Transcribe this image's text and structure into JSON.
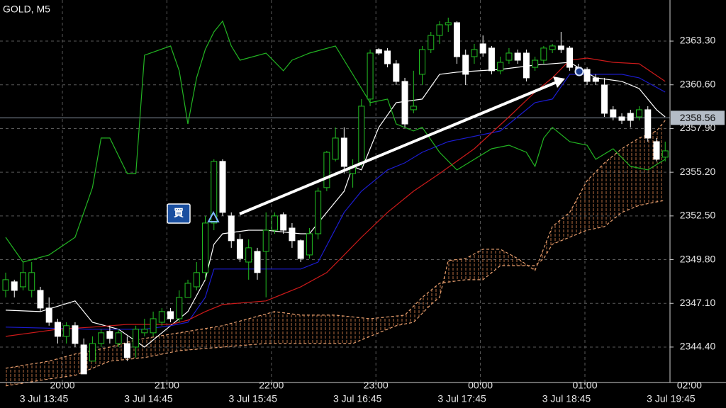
{
  "chart_data": {
    "type": "candlestick",
    "title": "GOLD, M5",
    "ylim": [
      2342.21,
      2365.84
    ],
    "yticks": [
      {
        "value": 2363.3,
        "label": "2363.30"
      },
      {
        "value": 2360.6,
        "label": "2360.60"
      },
      {
        "value": 2357.9,
        "label": "2357.90"
      },
      {
        "value": 2355.2,
        "label": "2355.20"
      },
      {
        "value": 2352.5,
        "label": "2352.50"
      },
      {
        "value": 2349.8,
        "label": "2349.80"
      },
      {
        "value": 2347.1,
        "label": "2347.10"
      },
      {
        "value": 2344.4,
        "label": "2344.40"
      }
    ],
    "grid": true,
    "current_price": 2358.56,
    "x_labels_upper": [
      "20:00",
      "21:00",
      "22:00",
      "23:00",
      "00:00",
      "01:00",
      "02:00"
    ],
    "x_labels_lower": [
      "3 Jul 13:45",
      "3 Jul 14:45",
      "3 Jul 15:45",
      "3 Jul 16:45",
      "3 Jul 17:45",
      "3 Jul 18:45",
      "3 Jul 19:45"
    ],
    "annotation": "買",
    "up_color": "#22c022",
    "down_color": "#ffffff",
    "candles": {
      "open": [
        2347.9,
        2348.43,
        2348.12,
        2347.9,
        2347.9,
        2346.81,
        2345.93,
        2345.06,
        2345.72,
        2344.53,
        2343.53,
        2344.62,
        2345.37,
        2344.62,
        2344.62,
        2344.4,
        2345.28,
        2345.28,
        2345.93,
        2346.59,
        2346.15,
        2347.47,
        2348.12,
        2349.0,
        2352.06,
        2355.87,
        2352.5,
        2351.05,
        2349.65,
        2350.31,
        2350.31,
        2351.62,
        2352.58,
        2351.75,
        2350.97,
        2350.09,
        2351.4,
        2354.25,
        2356.0,
        2357.31,
        2355.12,
        2355.78,
        2359.72,
        2362.78,
        2362.69,
        2361.9,
        2360.81,
        2359.06,
        2361.25,
        2362.78,
        2363.65,
        2364.31,
        2364.44,
        2362.43,
        2362.34,
        2363.13,
        2362.87,
        2361.47,
        2362.12,
        2362.56,
        2362.56,
        2361.68,
        2362.12,
        2362.78,
        2363.0,
        2362.87,
        2361.68,
        2361.55,
        2361.03,
        2360.59,
        2359.06,
        2358.62,
        2358.84,
        2358.62,
        2359.06,
        2357.09,
        2356.13
      ],
      "high": [
        2349.0,
        2348.56,
        2349.65,
        2349.65,
        2348.12,
        2347.47,
        2346.15,
        2345.93,
        2345.93,
        2344.93,
        2345.06,
        2345.5,
        2345.72,
        2345.5,
        2345.06,
        2345.72,
        2346.15,
        2346.59,
        2346.81,
        2346.81,
        2347.9,
        2348.56,
        2349.65,
        2352.5,
        2356.0,
        2356.0,
        2352.72,
        2351.4,
        2351.05,
        2350.53,
        2352.72,
        2352.72,
        2352.72,
        2352.06,
        2351.05,
        2351.75,
        2354.25,
        2356.52,
        2357.97,
        2357.97,
        2356.0,
        2359.72,
        2362.78,
        2362.87,
        2362.87,
        2362.12,
        2361.03,
        2361.47,
        2363.0,
        2363.87,
        2364.53,
        2364.75,
        2364.53,
        2362.78,
        2363.13,
        2363.65,
        2363.0,
        2362.34,
        2362.87,
        2362.78,
        2362.78,
        2362.34,
        2363.0,
        2363.13,
        2363.87,
        2363.0,
        2361.9,
        2361.68,
        2361.25,
        2361.03,
        2359.28,
        2358.84,
        2359.06,
        2359.28,
        2359.28,
        2357.31,
        2357.09
      ],
      "low": [
        2347.47,
        2347.47,
        2347.9,
        2347.47,
        2346.59,
        2345.72,
        2344.62,
        2344.62,
        2344.4,
        2342.74,
        2343.53,
        2344.4,
        2344.62,
        2344.4,
        2343.53,
        2343.75,
        2345.06,
        2345.06,
        2345.72,
        2345.93,
        2345.93,
        2347.47,
        2347.9,
        2348.56,
        2351.62,
        2352.5,
        2350.53,
        2349.65,
        2348.56,
        2348.56,
        2347.47,
        2351.4,
        2351.4,
        2350.53,
        2349.65,
        2349.87,
        2351.05,
        2354.03,
        2355.87,
        2355.12,
        2354.25,
        2355.56,
        2359.28,
        2362.43,
        2361.68,
        2360.59,
        2357.97,
        2358.84,
        2360.59,
        2362.56,
        2363.13,
        2363.87,
        2361.9,
        2360.59,
        2361.9,
        2362.34,
        2361.25,
        2361.25,
        2361.9,
        2361.9,
        2360.81,
        2361.47,
        2361.9,
        2362.56,
        2362.56,
        2361.47,
        2361.25,
        2360.59,
        2360.59,
        2358.62,
        2358.4,
        2358.18,
        2357.97,
        2358.4,
        2357.09,
        2355.87,
        2355.87
      ],
      "close": [
        2348.56,
        2347.9,
        2349.0,
        2349.0,
        2346.81,
        2345.93,
        2345.06,
        2345.72,
        2344.62,
        2342.74,
        2344.62,
        2345.28,
        2344.93,
        2345.28,
        2343.75,
        2345.5,
        2345.5,
        2346.15,
        2346.59,
        2346.15,
        2347.47,
        2348.34,
        2349.0,
        2352.06,
        2355.87,
        2352.72,
        2350.97,
        2349.87,
        2350.53,
        2349.0,
        2351.62,
        2352.5,
        2351.62,
        2350.97,
        2349.87,
        2351.4,
        2354.03,
        2356.43,
        2357.31,
        2355.56,
        2355.56,
        2359.28,
        2362.56,
        2362.56,
        2361.9,
        2360.81,
        2358.18,
        2359.28,
        2362.78,
        2363.65,
        2364.31,
        2364.44,
        2362.34,
        2361.25,
        2362.78,
        2362.56,
        2361.47,
        2361.99,
        2362.56,
        2362.12,
        2361.03,
        2362.12,
        2362.87,
        2363.0,
        2362.78,
        2361.68,
        2361.47,
        2360.81,
        2360.81,
        2358.84,
        2358.62,
        2358.4,
        2358.4,
        2359.06,
        2357.31,
        2356.0,
        2356.52
      ]
    },
    "lines": [
      {
        "color": "#ffffff",
        "dashed": false,
        "x": [
          0,
          4,
          8,
          10,
          13,
          16,
          19,
          21,
          23,
          24,
          25,
          28,
          30,
          34,
          35,
          37,
          39,
          40,
          41,
          43,
          45,
          48,
          50,
          52,
          57,
          61,
          65,
          68,
          71,
          73,
          75,
          76
        ],
        "values": [
          2346.68,
          2346.59,
          2347.25,
          2345.93,
          2345.5,
          2344.4,
          2345.72,
          2346.59,
          2348.56,
          2350.75,
          2351.4,
          2351.62,
          2351.62,
          2351.4,
          2351.4,
          2352.72,
          2354.03,
          2355.56,
          2355.34,
          2357.97,
          2359.5,
          2359.72,
          2361.25,
          2361.38,
          2361.55,
          2361.82,
          2361.99,
          2361.03,
          2360.81,
          2360.37,
          2359.06,
          2358.62
        ]
      },
      {
        "color": "#1c1cd0",
        "dashed": false,
        "x": [
          0,
          10,
          16,
          19,
          21,
          23,
          24,
          30,
          34,
          36,
          39,
          41,
          44,
          46,
          48,
          51,
          53,
          57,
          61,
          63,
          65,
          68,
          71,
          73,
          76
        ],
        "values": [
          2345.63,
          2345.5,
          2345.5,
          2345.72,
          2345.93,
          2347.47,
          2349.22,
          2349.22,
          2349.22,
          2349.65,
          2352.72,
          2354.03,
          2355.34,
          2355.78,
          2356.43,
          2357.09,
          2357.31,
          2357.75,
          2359.5,
          2359.72,
          2361.25,
          2361.25,
          2361.25,
          2361.03,
          2360.15
        ]
      },
      {
        "color": "#cc1a1a",
        "dashed": false,
        "x": [
          0,
          6,
          10,
          14,
          19,
          21,
          23,
          25,
          30,
          34,
          37,
          39,
          41,
          44,
          47,
          50,
          54,
          58,
          61,
          63,
          65,
          67,
          70,
          73,
          76
        ],
        "values": [
          2345.06,
          2345.5,
          2345.63,
          2345.8,
          2345.8,
          2346.06,
          2346.59,
          2347.03,
          2347.25,
          2348.12,
          2349.0,
          2350.09,
          2351.18,
          2352.72,
          2354.03,
          2355.12,
          2356.65,
          2358.62,
          2360.15,
          2361.03,
          2362.12,
          2362.25,
          2361.99,
          2361.9,
          2360.81
        ]
      },
      {
        "color": "#22b422",
        "dashed": false,
        "x": [
          0,
          2,
          5,
          8,
          10,
          11,
          12,
          14,
          15,
          16,
          19,
          20,
          21,
          22,
          23,
          24,
          25,
          26,
          27,
          30,
          32,
          33,
          35,
          38,
          40,
          42,
          44,
          45,
          47,
          48,
          50,
          52,
          54,
          56,
          58,
          60,
          61,
          62,
          63,
          65,
          67,
          68,
          70,
          72,
          74,
          76
        ],
        "values": [
          2351.18,
          2349.65,
          2350.09,
          2351.18,
          2354.25,
          2357.31,
          2357.31,
          2355.12,
          2355.12,
          2362.43,
          2363.0,
          2361.47,
          2358.18,
          2361.03,
          2362.78,
          2363.87,
          2364.53,
          2363.0,
          2362.12,
          2362.56,
          2361.47,
          2362.12,
          2362.56,
          2363.0,
          2361.25,
          2359.5,
          2359.72,
          2358.18,
          2357.75,
          2357.97,
          2356.43,
          2355.34,
          2356.0,
          2356.65,
          2356.87,
          2356.43,
          2355.56,
          2357.31,
          2357.97,
          2357.09,
          2356.87,
          2356.0,
          2356.65,
          2355.56,
          2355.34,
          2356.0
        ]
      },
      {
        "color": "#e8a070",
        "dashed": true,
        "x": [
          0,
          5,
          8,
          12,
          15,
          20,
          25,
          28,
          31,
          34,
          38,
          42,
          46,
          48,
          50,
          53,
          55,
          57,
          61,
          62,
          63,
          67,
          69,
          71,
          73,
          75,
          76
        ],
        "values": [
          2343.09,
          2343.53,
          2343.97,
          2344.4,
          2344.84,
          2345.28,
          2345.72,
          2346.15,
          2346.59,
          2346.37,
          2346.37,
          2346.15,
          2346.37,
          2347.47,
          2348.34,
          2348.56,
          2348.56,
          2349.43,
          2349.43,
          2349.87,
          2350.75,
          2351.62,
          2351.84,
          2352.72,
          2353.15,
          2353.37,
          2353.46
        ]
      },
      {
        "color": "#e8a070",
        "dashed": true,
        "x": [
          0,
          5,
          8,
          12,
          16,
          20,
          25,
          30,
          35,
          40,
          43,
          45,
          47,
          49,
          50,
          51,
          53,
          55,
          57,
          59,
          61,
          63,
          65,
          67,
          69,
          71,
          73,
          75,
          76
        ],
        "values": [
          2342.0,
          2342.43,
          2342.65,
          2343.53,
          2343.75,
          2344.18,
          2344.4,
          2344.62,
          2344.62,
          2344.62,
          2345.28,
          2345.72,
          2345.93,
          2347.03,
          2347.47,
          2349.74,
          2349.87,
          2350.44,
          2350.44,
          2349.87,
          2349.13,
          2351.84,
          2352.72,
          2354.68,
          2355.78,
          2356.65,
          2357.31,
          2357.75,
          2358.4
        ]
      }
    ]
  }
}
